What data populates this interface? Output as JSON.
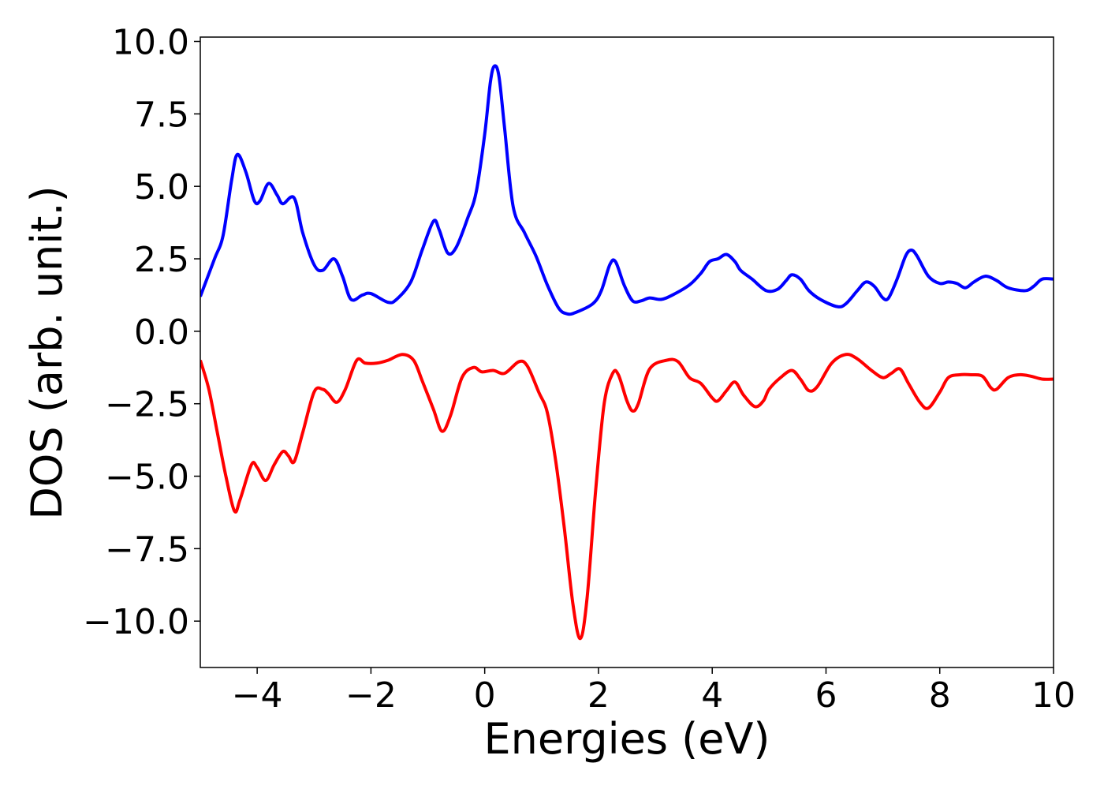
{
  "chart_data": {
    "type": "line",
    "xlabel": "Energies (eV)",
    "ylabel": "DOS (arb. unit.)",
    "xlim": [
      -5,
      10
    ],
    "ylim": [
      -11.6,
      10.15
    ],
    "xticks": [
      {
        "value": -4,
        "label": "−4"
      },
      {
        "value": -2,
        "label": "−2"
      },
      0,
      2,
      4,
      6,
      8,
      10
    ],
    "yticks": [
      {
        "value": 10,
        "label": "10.0"
      },
      {
        "value": 7.5,
        "label": "7.5"
      },
      {
        "value": 5,
        "label": "5.0"
      },
      {
        "value": 2.5,
        "label": "2.5"
      },
      {
        "value": 0,
        "label": "0.0"
      },
      {
        "value": -2.5,
        "label": "−2.5"
      },
      {
        "value": -5,
        "label": "−5.0"
      },
      {
        "value": -7.5,
        "label": "−7.5"
      },
      {
        "value": -10,
        "label": "−10.0"
      }
    ],
    "grid": false,
    "series": [
      {
        "color": "#0000ff",
        "x": [
          -5,
          -4.75,
          -4.6,
          -4.45,
          -4.35,
          -4.2,
          -4.05,
          -3.95,
          -3.8,
          -3.65,
          -3.55,
          -3.35,
          -3.2,
          -3.0,
          -2.85,
          -2.65,
          -2.5,
          -2.35,
          -2.15,
          -2.0,
          -1.7,
          -1.55,
          -1.3,
          -1.1,
          -0.9,
          -0.8,
          -0.65,
          -0.5,
          -0.3,
          -0.15,
          0.0,
          0.1,
          0.17,
          0.25,
          0.35,
          0.5,
          0.7,
          0.9,
          1.1,
          1.3,
          1.45,
          1.6,
          1.9,
          2.05,
          2.2,
          2.3,
          2.45,
          2.6,
          2.75,
          2.9,
          3.1,
          3.3,
          3.6,
          3.8,
          3.95,
          4.1,
          4.25,
          4.4,
          4.5,
          4.7,
          4.95,
          5.15,
          5.3,
          5.4,
          5.55,
          5.7,
          5.9,
          6.2,
          6.35,
          6.55,
          6.7,
          6.85,
          7.0,
          7.1,
          7.25,
          7.4,
          7.5,
          7.6,
          7.8,
          8.0,
          8.15,
          8.3,
          8.45,
          8.6,
          8.8,
          9.0,
          9.2,
          9.5,
          9.65,
          9.8,
          10.0
        ],
        "values": [
          1.2,
          2.5,
          3.3,
          5.2,
          6.1,
          5.5,
          4.5,
          4.5,
          5.1,
          4.7,
          4.4,
          4.6,
          3.4,
          2.3,
          2.1,
          2.5,
          1.9,
          1.1,
          1.25,
          1.3,
          1.0,
          1.1,
          1.7,
          2.8,
          3.8,
          3.5,
          2.7,
          2.9,
          3.9,
          4.8,
          6.8,
          8.6,
          9.15,
          8.8,
          7.0,
          4.3,
          3.4,
          2.6,
          1.6,
          0.8,
          0.6,
          0.65,
          0.95,
          1.4,
          2.3,
          2.4,
          1.6,
          1.05,
          1.05,
          1.15,
          1.1,
          1.25,
          1.6,
          2.0,
          2.4,
          2.5,
          2.65,
          2.4,
          2.1,
          1.8,
          1.4,
          1.45,
          1.75,
          1.95,
          1.8,
          1.4,
          1.1,
          0.85,
          0.95,
          1.4,
          1.7,
          1.55,
          1.15,
          1.15,
          1.8,
          2.6,
          2.8,
          2.6,
          1.9,
          1.65,
          1.7,
          1.65,
          1.5,
          1.7,
          1.9,
          1.75,
          1.5,
          1.4,
          1.55,
          1.8,
          1.8
        ]
      },
      {
        "color": "#ff0000",
        "x": [
          -5,
          -4.85,
          -4.7,
          -4.55,
          -4.4,
          -4.3,
          -4.1,
          -4.0,
          -3.85,
          -3.7,
          -3.55,
          -3.45,
          -3.35,
          -3.2,
          -3.0,
          -2.85,
          -2.75,
          -2.6,
          -2.45,
          -2.25,
          -2.1,
          -1.9,
          -1.7,
          -1.45,
          -1.25,
          -1.1,
          -0.9,
          -0.75,
          -0.6,
          -0.4,
          -0.2,
          -0.05,
          0.15,
          0.35,
          0.6,
          0.75,
          0.95,
          1.1,
          1.25,
          1.4,
          1.55,
          1.68,
          1.8,
          1.95,
          2.1,
          2.25,
          2.35,
          2.5,
          2.6,
          2.7,
          2.9,
          3.2,
          3.4,
          3.6,
          3.8,
          4.0,
          4.1,
          4.25,
          4.4,
          4.55,
          4.75,
          4.9,
          5.0,
          5.2,
          5.4,
          5.55,
          5.7,
          5.85,
          6.1,
          6.35,
          6.55,
          6.8,
          7.0,
          7.15,
          7.3,
          7.45,
          7.65,
          7.8,
          8.0,
          8.15,
          8.35,
          8.55,
          8.75,
          8.9,
          9.0,
          9.2,
          9.4,
          9.6,
          9.8,
          10.0
        ],
        "values": [
          -1.0,
          -2.0,
          -3.5,
          -5.0,
          -6.2,
          -5.8,
          -4.6,
          -4.7,
          -5.15,
          -4.6,
          -4.15,
          -4.3,
          -4.5,
          -3.5,
          -2.1,
          -2.0,
          -2.15,
          -2.45,
          -2.0,
          -1.0,
          -1.1,
          -1.1,
          -1.0,
          -0.8,
          -1.0,
          -1.7,
          -2.7,
          -3.45,
          -2.9,
          -1.6,
          -1.25,
          -1.4,
          -1.35,
          -1.45,
          -1.05,
          -1.2,
          -2.1,
          -2.8,
          -4.5,
          -6.8,
          -9.4,
          -10.6,
          -9.2,
          -5.5,
          -2.5,
          -1.45,
          -1.5,
          -2.4,
          -2.75,
          -2.5,
          -1.3,
          -1.0,
          -1.05,
          -1.6,
          -1.8,
          -2.3,
          -2.4,
          -2.05,
          -1.75,
          -2.2,
          -2.6,
          -2.4,
          -2.0,
          -1.6,
          -1.35,
          -1.65,
          -2.05,
          -1.9,
          -1.1,
          -0.8,
          -0.95,
          -1.35,
          -1.6,
          -1.45,
          -1.3,
          -1.8,
          -2.45,
          -2.65,
          -2.1,
          -1.6,
          -1.5,
          -1.5,
          -1.55,
          -1.95,
          -2.0,
          -1.6,
          -1.5,
          -1.55,
          -1.65,
          -1.65
        ]
      }
    ]
  }
}
